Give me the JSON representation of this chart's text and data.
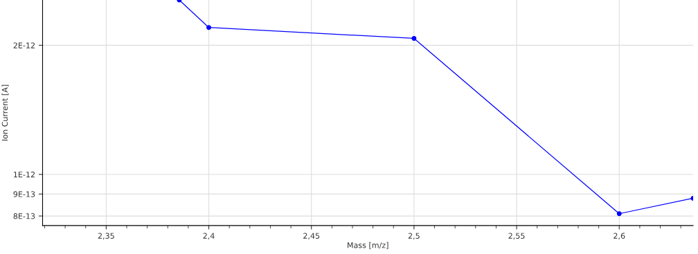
{
  "chart_data": {
    "type": "line",
    "xlabel": "Mass [m/z]",
    "ylabel": "Ion Current [A]",
    "x": [
      2.3856,
      2.4,
      2.5,
      2.6,
      2.636
    ],
    "series": [
      {
        "color": "#0000ff",
        "values": [
          2.55e-12,
          2.2e-12,
          2.075e-12,
          8.1e-13,
          8.8e-13
        ]
      }
    ],
    "log": "y",
    "xlim": [
      2.319,
      2.636
    ],
    "ylim": [
      7.6e-13,
      2.55e-12
    ],
    "xticks": [
      {
        "value": 2.35,
        "label": "2,35"
      },
      {
        "value": 2.4,
        "label": "2,4"
      },
      {
        "value": 2.45,
        "label": "2,45"
      },
      {
        "value": 2.5,
        "label": "2,5"
      },
      {
        "value": 2.55,
        "label": "2,55"
      },
      {
        "value": 2.6,
        "label": "2,6"
      }
    ],
    "yticks": [
      {
        "value": 8e-13,
        "label": "8E-13"
      },
      {
        "value": 9e-13,
        "label": "9E-13"
      },
      {
        "value": 1e-12,
        "label": "1E-12"
      },
      {
        "value": 2e-12,
        "label": "2E-12"
      }
    ],
    "grid": true,
    "marker": "circle",
    "line_style": "solid"
  }
}
